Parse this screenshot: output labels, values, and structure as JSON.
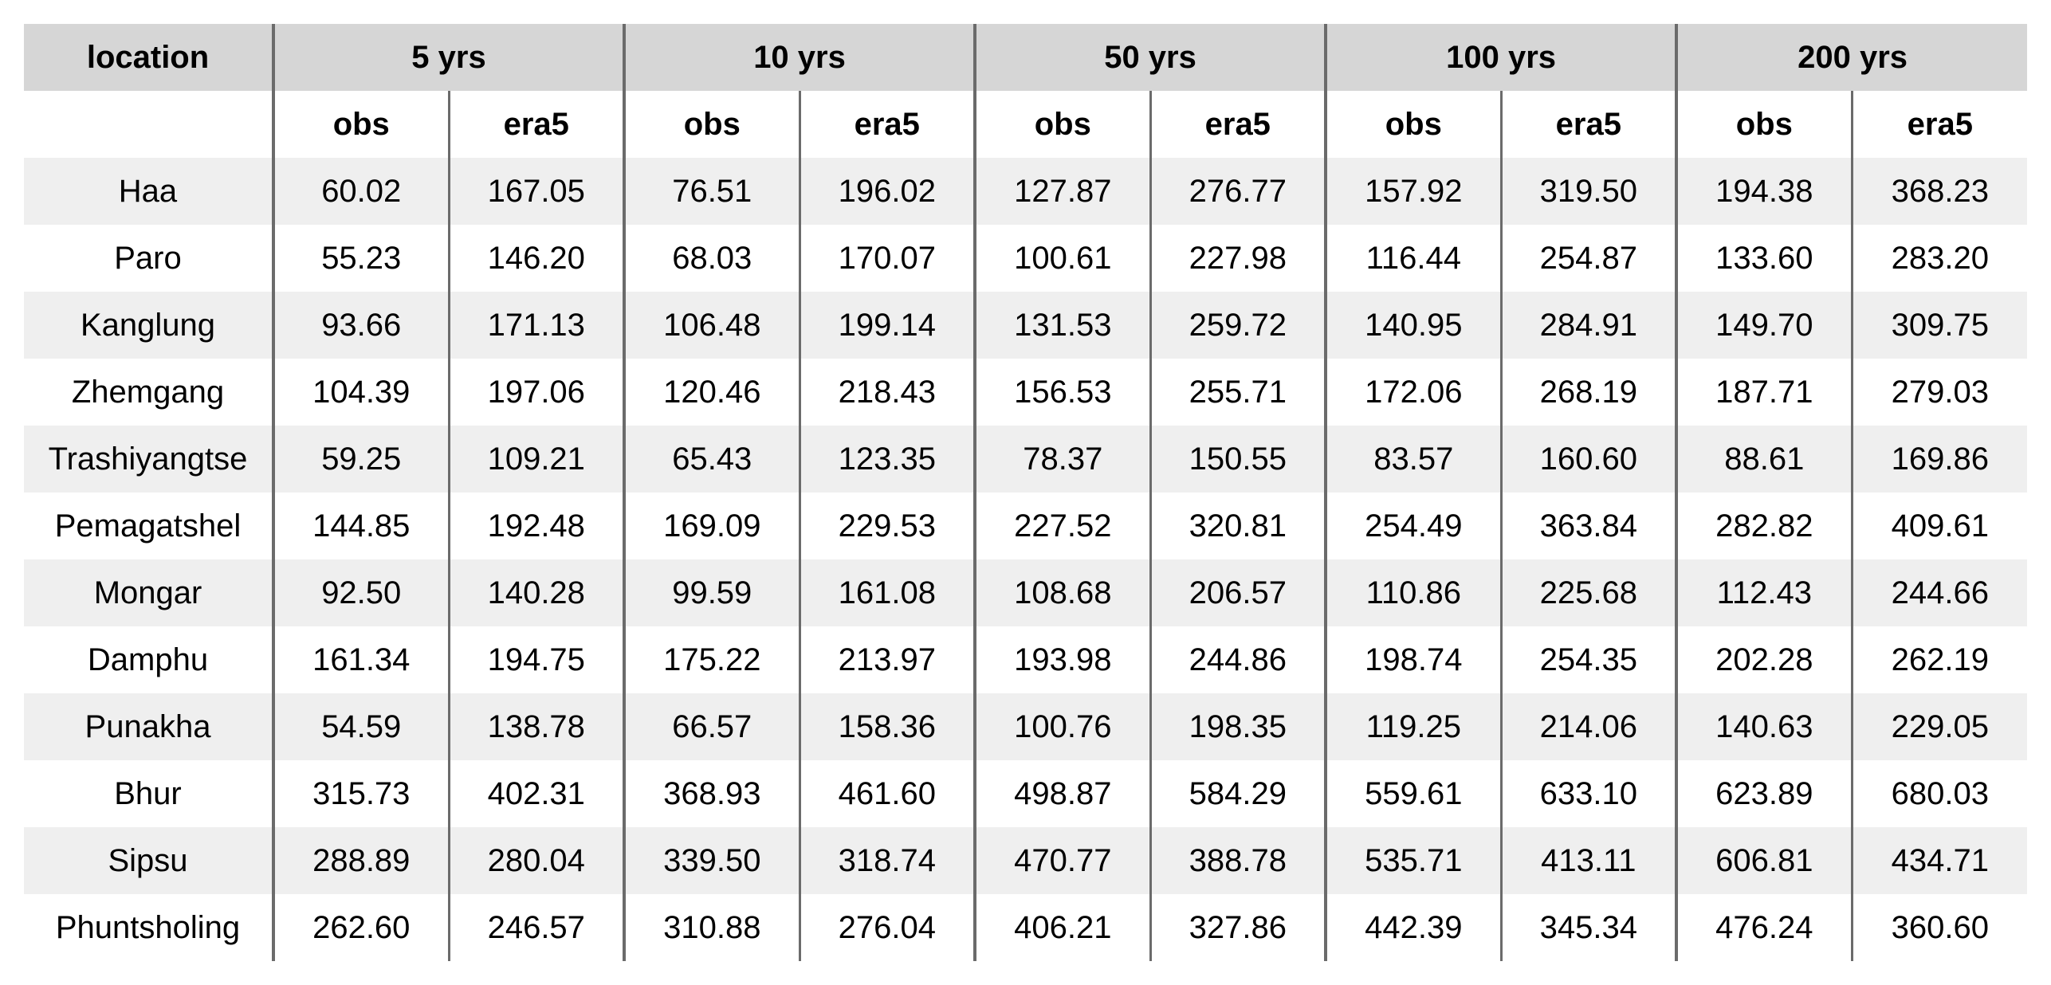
{
  "table": {
    "location_header": "location",
    "periods": [
      "5 yrs",
      "10 yrs",
      "50 yrs",
      "100 yrs",
      "200 yrs"
    ],
    "sub_headers": [
      "obs",
      "era5"
    ],
    "rows": [
      {
        "location": "Haa",
        "values": [
          "60.02",
          "167.05",
          "76.51",
          "196.02",
          "127.87",
          "276.77",
          "157.92",
          "319.50",
          "194.38",
          "368.23"
        ]
      },
      {
        "location": "Paro",
        "values": [
          "55.23",
          "146.20",
          "68.03",
          "170.07",
          "100.61",
          "227.98",
          "116.44",
          "254.87",
          "133.60",
          "283.20"
        ]
      },
      {
        "location": "Kanglung",
        "values": [
          "93.66",
          "171.13",
          "106.48",
          "199.14",
          "131.53",
          "259.72",
          "140.95",
          "284.91",
          "149.70",
          "309.75"
        ]
      },
      {
        "location": "Zhemgang",
        "values": [
          "104.39",
          "197.06",
          "120.46",
          "218.43",
          "156.53",
          "255.71",
          "172.06",
          "268.19",
          "187.71",
          "279.03"
        ]
      },
      {
        "location": "Trashiyangtse",
        "values": [
          "59.25",
          "109.21",
          "65.43",
          "123.35",
          "78.37",
          "150.55",
          "83.57",
          "160.60",
          "88.61",
          "169.86"
        ]
      },
      {
        "location": "Pemagatshel",
        "values": [
          "144.85",
          "192.48",
          "169.09",
          "229.53",
          "227.52",
          "320.81",
          "254.49",
          "363.84",
          "282.82",
          "409.61"
        ]
      },
      {
        "location": "Mongar",
        "values": [
          "92.50",
          "140.28",
          "99.59",
          "161.08",
          "108.68",
          "206.57",
          "110.86",
          "225.68",
          "112.43",
          "244.66"
        ]
      },
      {
        "location": "Damphu",
        "values": [
          "161.34",
          "194.75",
          "175.22",
          "213.97",
          "193.98",
          "244.86",
          "198.74",
          "254.35",
          "202.28",
          "262.19"
        ]
      },
      {
        "location": "Punakha",
        "values": [
          "54.59",
          "138.78",
          "66.57",
          "158.36",
          "100.76",
          "198.35",
          "119.25",
          "214.06",
          "140.63",
          "229.05"
        ]
      },
      {
        "location": "Bhur",
        "values": [
          "315.73",
          "402.31",
          "368.93",
          "461.60",
          "498.87",
          "584.29",
          "559.61",
          "633.10",
          "623.89",
          "680.03"
        ]
      },
      {
        "location": "Sipsu",
        "values": [
          "288.89",
          "280.04",
          "339.50",
          "318.74",
          "470.77",
          "388.78",
          "535.71",
          "413.11",
          "606.81",
          "434.71"
        ]
      },
      {
        "location": "Phuntsholing",
        "values": [
          "262.60",
          "246.57",
          "310.88",
          "276.04",
          "406.21",
          "327.86",
          "442.39",
          "345.34",
          "476.24",
          "360.60"
        ]
      }
    ]
  }
}
